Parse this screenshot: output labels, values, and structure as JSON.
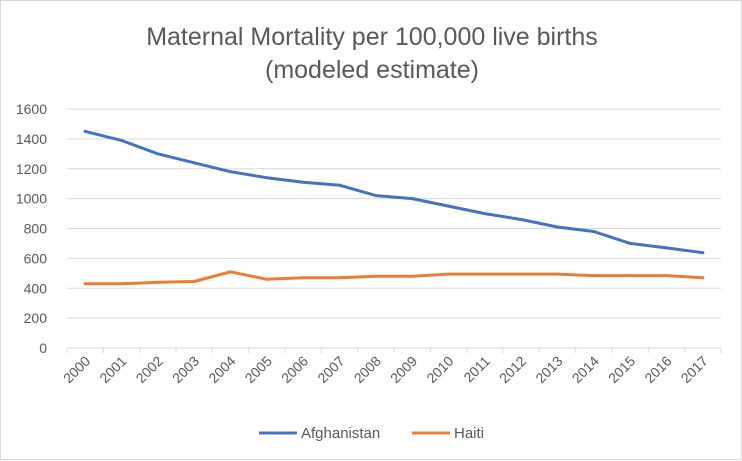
{
  "chart_data": {
    "type": "line",
    "title_lines": [
      "Maternal Mortality per 100,000 live births",
      "(modeled estimate)"
    ],
    "xlabel": "",
    "ylabel": "",
    "x": [
      "2000",
      "2001",
      "2002",
      "2003",
      "2004",
      "2005",
      "2006",
      "2007",
      "2008",
      "2009",
      "2010",
      "2011",
      "2012",
      "2013",
      "2014",
      "2015",
      "2016",
      "2017"
    ],
    "ylim": [
      0,
      1600
    ],
    "yticks": [
      0,
      200,
      400,
      600,
      800,
      1000,
      1200,
      1400,
      1600
    ],
    "grid": "horizontal",
    "legend_position": "bottom",
    "series": [
      {
        "name": "Afghanistan",
        "color": "#4472c4",
        "values": [
          1450,
          1390,
          1300,
          1240,
          1180,
          1140,
          1110,
          1090,
          1020,
          1000,
          950,
          900,
          860,
          810,
          780,
          700,
          670,
          638
        ]
      },
      {
        "name": "Haiti",
        "color": "#ed7d31",
        "values": [
          430,
          430,
          440,
          445,
          510,
          460,
          470,
          470,
          480,
          480,
          495,
          495,
          495,
          495,
          485,
          485,
          485,
          470
        ]
      }
    ]
  }
}
